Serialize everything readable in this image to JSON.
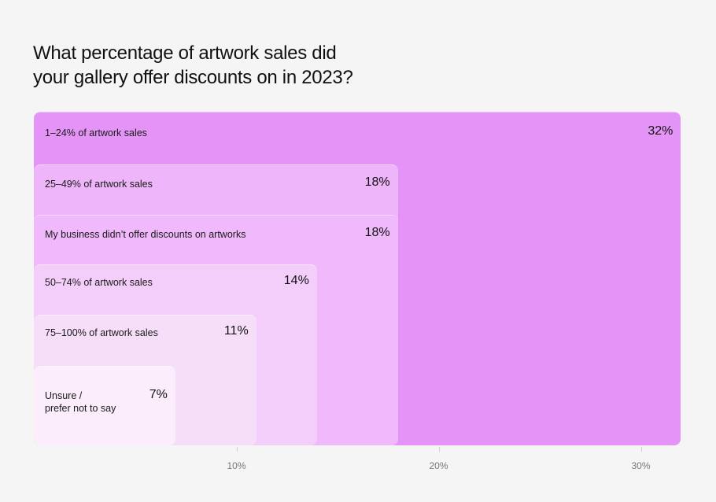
{
  "title": "What percentage of artwork sales did\nyour gallery offer discounts on in 2023?",
  "colors": [
    "#e494f6",
    "#eeb5fa",
    "#efb9fb",
    "#f4cefb",
    "#f6def9",
    "#fbedfc"
  ],
  "chart_data": {
    "type": "bar",
    "orientation": "horizontal",
    "style": "overlapping rounded bars anchored at bottom-left",
    "title": "What percentage of artwork sales did your gallery offer discounts on in 2023?",
    "categories": [
      "1–24% of artwork sales",
      "25–49% of artwork sales",
      "My business didn’t offer discounts on artworks",
      "50–74% of artwork sales",
      "75–100% of artwork sales",
      "Unsure /\nprefer not to say"
    ],
    "values": [
      32,
      18,
      18,
      14,
      11,
      7
    ],
    "value_labels": [
      "32%",
      "18%",
      "18%",
      "14%",
      "11%",
      "7%"
    ],
    "xlim": [
      0,
      32
    ],
    "xticks": [
      10,
      20,
      30
    ],
    "xtick_labels": [
      "10%",
      "20%",
      "30%"
    ],
    "grid": false,
    "legend": "none"
  }
}
